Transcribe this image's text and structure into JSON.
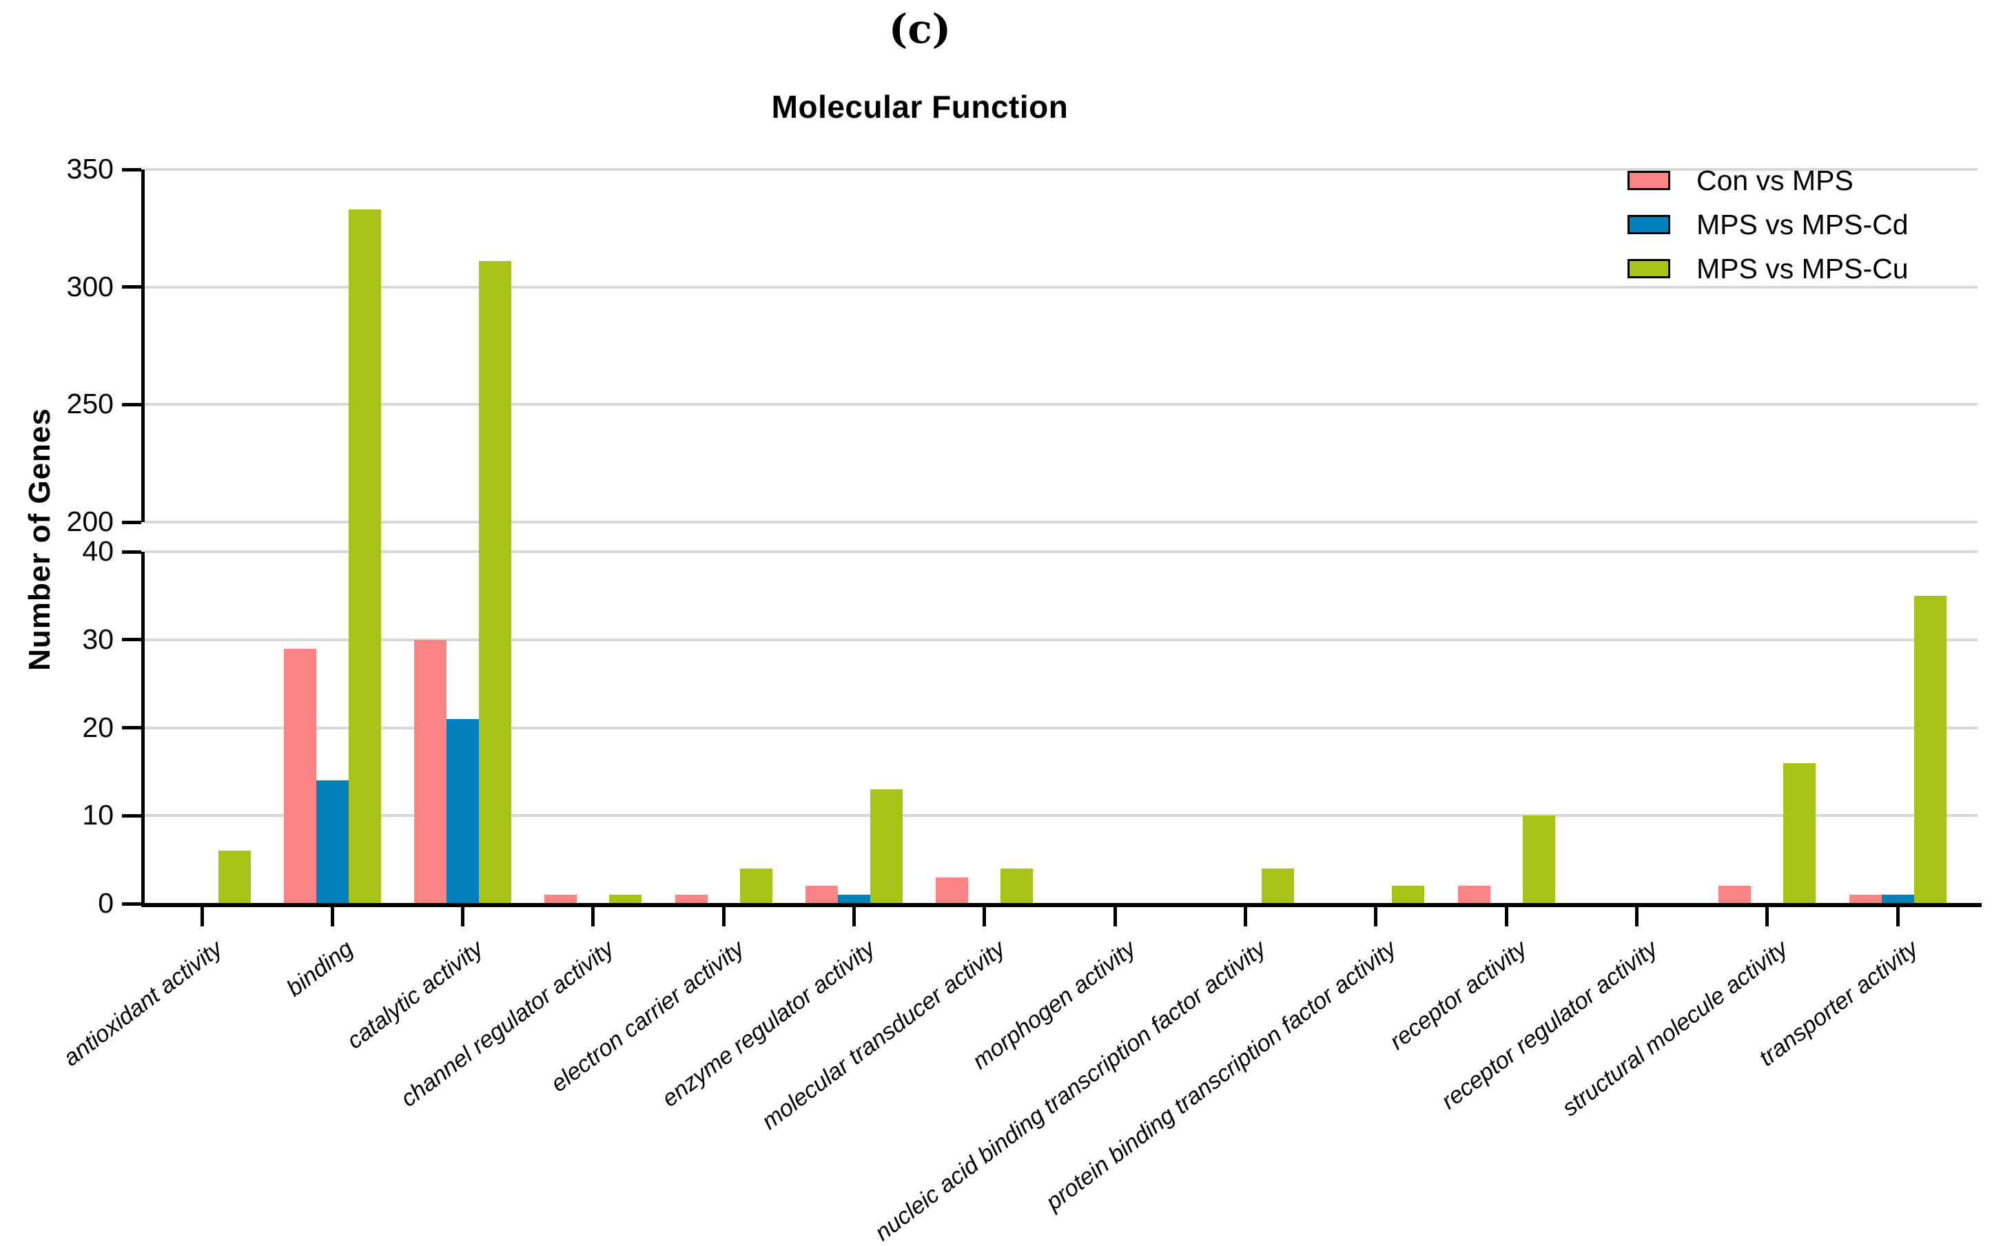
{
  "panel_label": "(c)",
  "title": "Molecular Function",
  "y_axis": {
    "label": "Number of Genes",
    "lower_ticks": [
      0,
      10,
      20,
      30,
      40
    ],
    "upper_ticks": [
      200,
      250,
      300,
      350
    ],
    "break_between": [
      40,
      200
    ]
  },
  "colors": {
    "con_vs_mps": "#fa8584",
    "mps_vs_mps_cd": "#0080bd",
    "mps_vs_mps_cu": "#a9c318",
    "gridline": "#d8d8d8",
    "axis": "#000000"
  },
  "legend": {
    "entries": [
      "Con vs MPS",
      "MPS vs MPS-Cd",
      "MPS vs MPS-Cu"
    ]
  },
  "chart_data": {
    "type": "bar",
    "title": "Molecular Function",
    "xlabel": "",
    "ylabel": "Number of Genes",
    "grid": true,
    "legend_position": "top-right",
    "broken_y_axis": {
      "lower_range": [
        0,
        40
      ],
      "upper_range": [
        200,
        350
      ]
    },
    "categories": [
      "antioxidant activity",
      "binding",
      "catalytic activity",
      "channel regulator activity",
      "electron carrier activity",
      "enzyme regulator activity",
      "molecular transducer activity",
      "morphogen activity",
      "nucleic acid binding transcription factor activity",
      "protein binding transcription factor activity",
      "receptor activity",
      "receptor regulator activity",
      "structural molecule activity",
      "transporter activity"
    ],
    "series": [
      {
        "name": "Con vs MPS",
        "color": "#fa8584",
        "values": [
          0,
          29,
          30,
          1,
          1,
          2,
          3,
          0,
          0,
          0,
          2,
          0,
          2,
          1
        ]
      },
      {
        "name": "MPS vs MPS-Cd",
        "color": "#0080bd",
        "values": [
          0,
          14,
          21,
          0,
          0,
          1,
          0,
          0,
          0,
          0,
          0,
          0,
          0,
          1
        ]
      },
      {
        "name": "MPS vs MPS-Cu",
        "color": "#a9c318",
        "values": [
          6,
          333,
          311,
          1,
          4,
          13,
          4,
          0,
          4,
          2,
          10,
          0,
          16,
          35
        ]
      }
    ]
  }
}
